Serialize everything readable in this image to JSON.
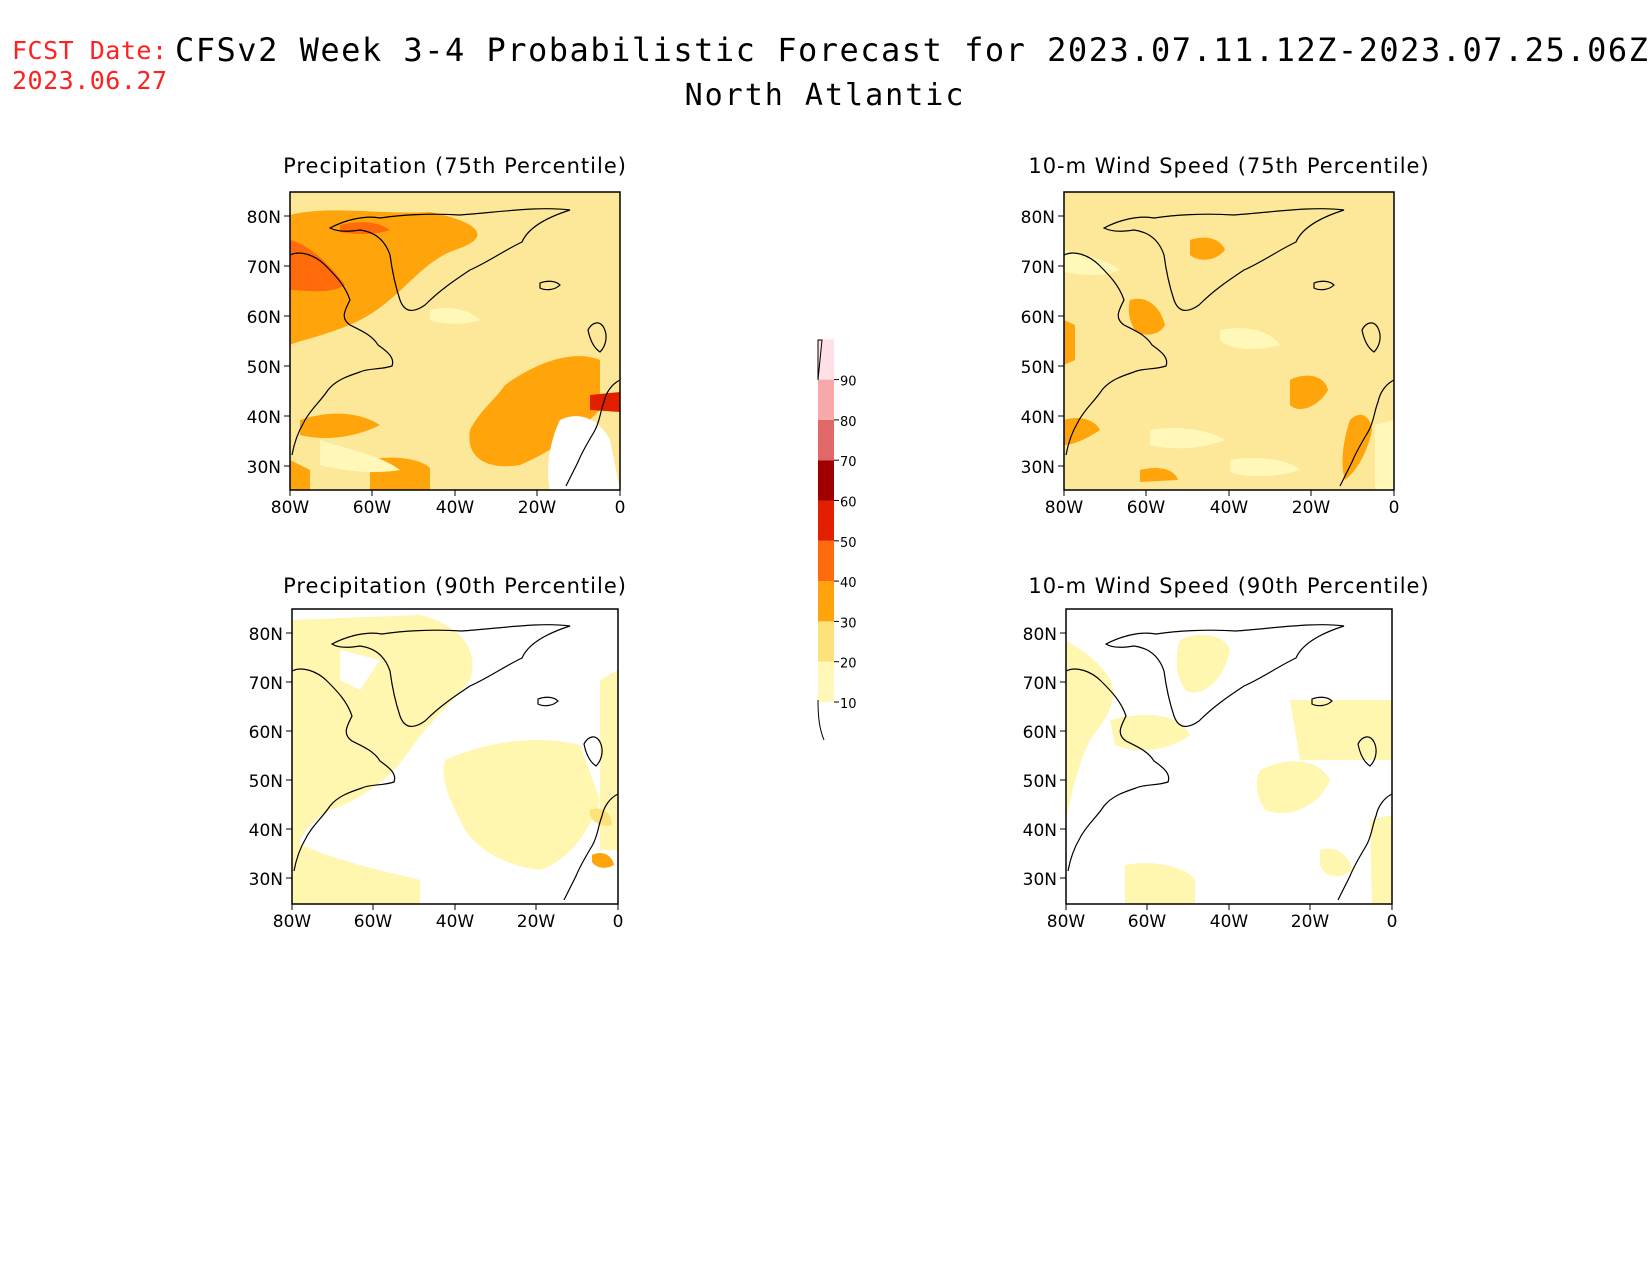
{
  "header": {
    "fcst_label": "FCST Date:",
    "fcst_date": "2023.06.27",
    "title": "CFSv2 Week 3-4 Probabilistic Forecast for 2023.07.11.12Z-2023.07.25.06Z",
    "region": "North Atlantic"
  },
  "colorbar": {
    "labels": [
      "10",
      "20",
      "30",
      "40",
      "50",
      "60",
      "70",
      "80",
      "90"
    ],
    "colors": [
      "#fff8b8",
      "#fde27c",
      "#ffa40a",
      "#ff6a0a",
      "#e22000",
      "#a00000",
      "#e06868",
      "#f8a8a8",
      "#ffe0e6"
    ]
  },
  "axes": {
    "lat_labels": [
      "80N",
      "70N",
      "60N",
      "50N",
      "40N",
      "30N"
    ],
    "lon_labels": [
      "80W",
      "60W",
      "40W",
      "20W",
      "0"
    ]
  },
  "panels": [
    {
      "title": "Precipitation (75th Percentile)"
    },
    {
      "title": "10-m Wind Speed (75th Percentile)"
    },
    {
      "title": "Precipitation (90th Percentile)"
    },
    {
      "title": "10-m Wind Speed (90th Percentile)"
    }
  ]
}
